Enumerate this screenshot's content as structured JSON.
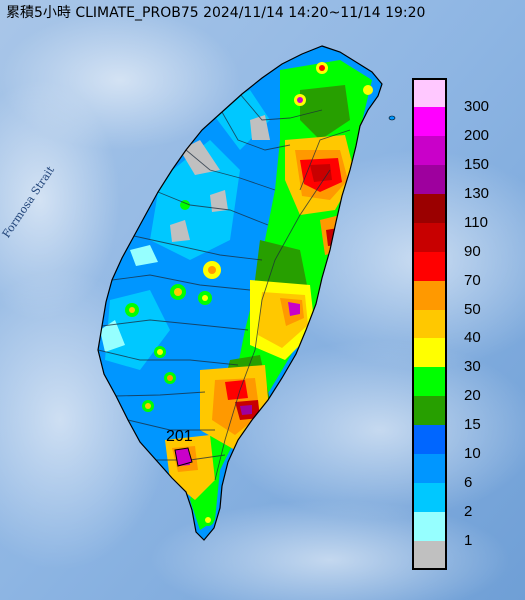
{
  "title": "累積5小時 CLIMATE_PROB75 2024/11/14 14:20~11/14 19:20",
  "strait_label": "Formosa Strait",
  "max_label": "201",
  "legend": [
    {
      "label": "300",
      "color": "#ffc8ff"
    },
    {
      "label": "200",
      "color": "#ff00ff"
    },
    {
      "label": "150",
      "color": "#c900c9"
    },
    {
      "label": "130",
      "color": "#9e009e"
    },
    {
      "label": "110",
      "color": "#9b0000"
    },
    {
      "label": "90",
      "color": "#c80000"
    },
    {
      "label": "70",
      "color": "#ff0000"
    },
    {
      "label": "50",
      "color": "#ff9900"
    },
    {
      "label": "40",
      "color": "#ffc800"
    },
    {
      "label": "30",
      "color": "#ffff00"
    },
    {
      "label": "20",
      "color": "#00ff00"
    },
    {
      "label": "15",
      "color": "#279f00"
    },
    {
      "label": "10",
      "color": "#0066ff"
    },
    {
      "label": "6",
      "color": "#0096ff"
    },
    {
      "label": "2",
      "color": "#00c8ff"
    },
    {
      "label": "1",
      "color": "#96ffff"
    },
    {
      "label": "",
      "color": "#c0c0c0"
    }
  ]
}
